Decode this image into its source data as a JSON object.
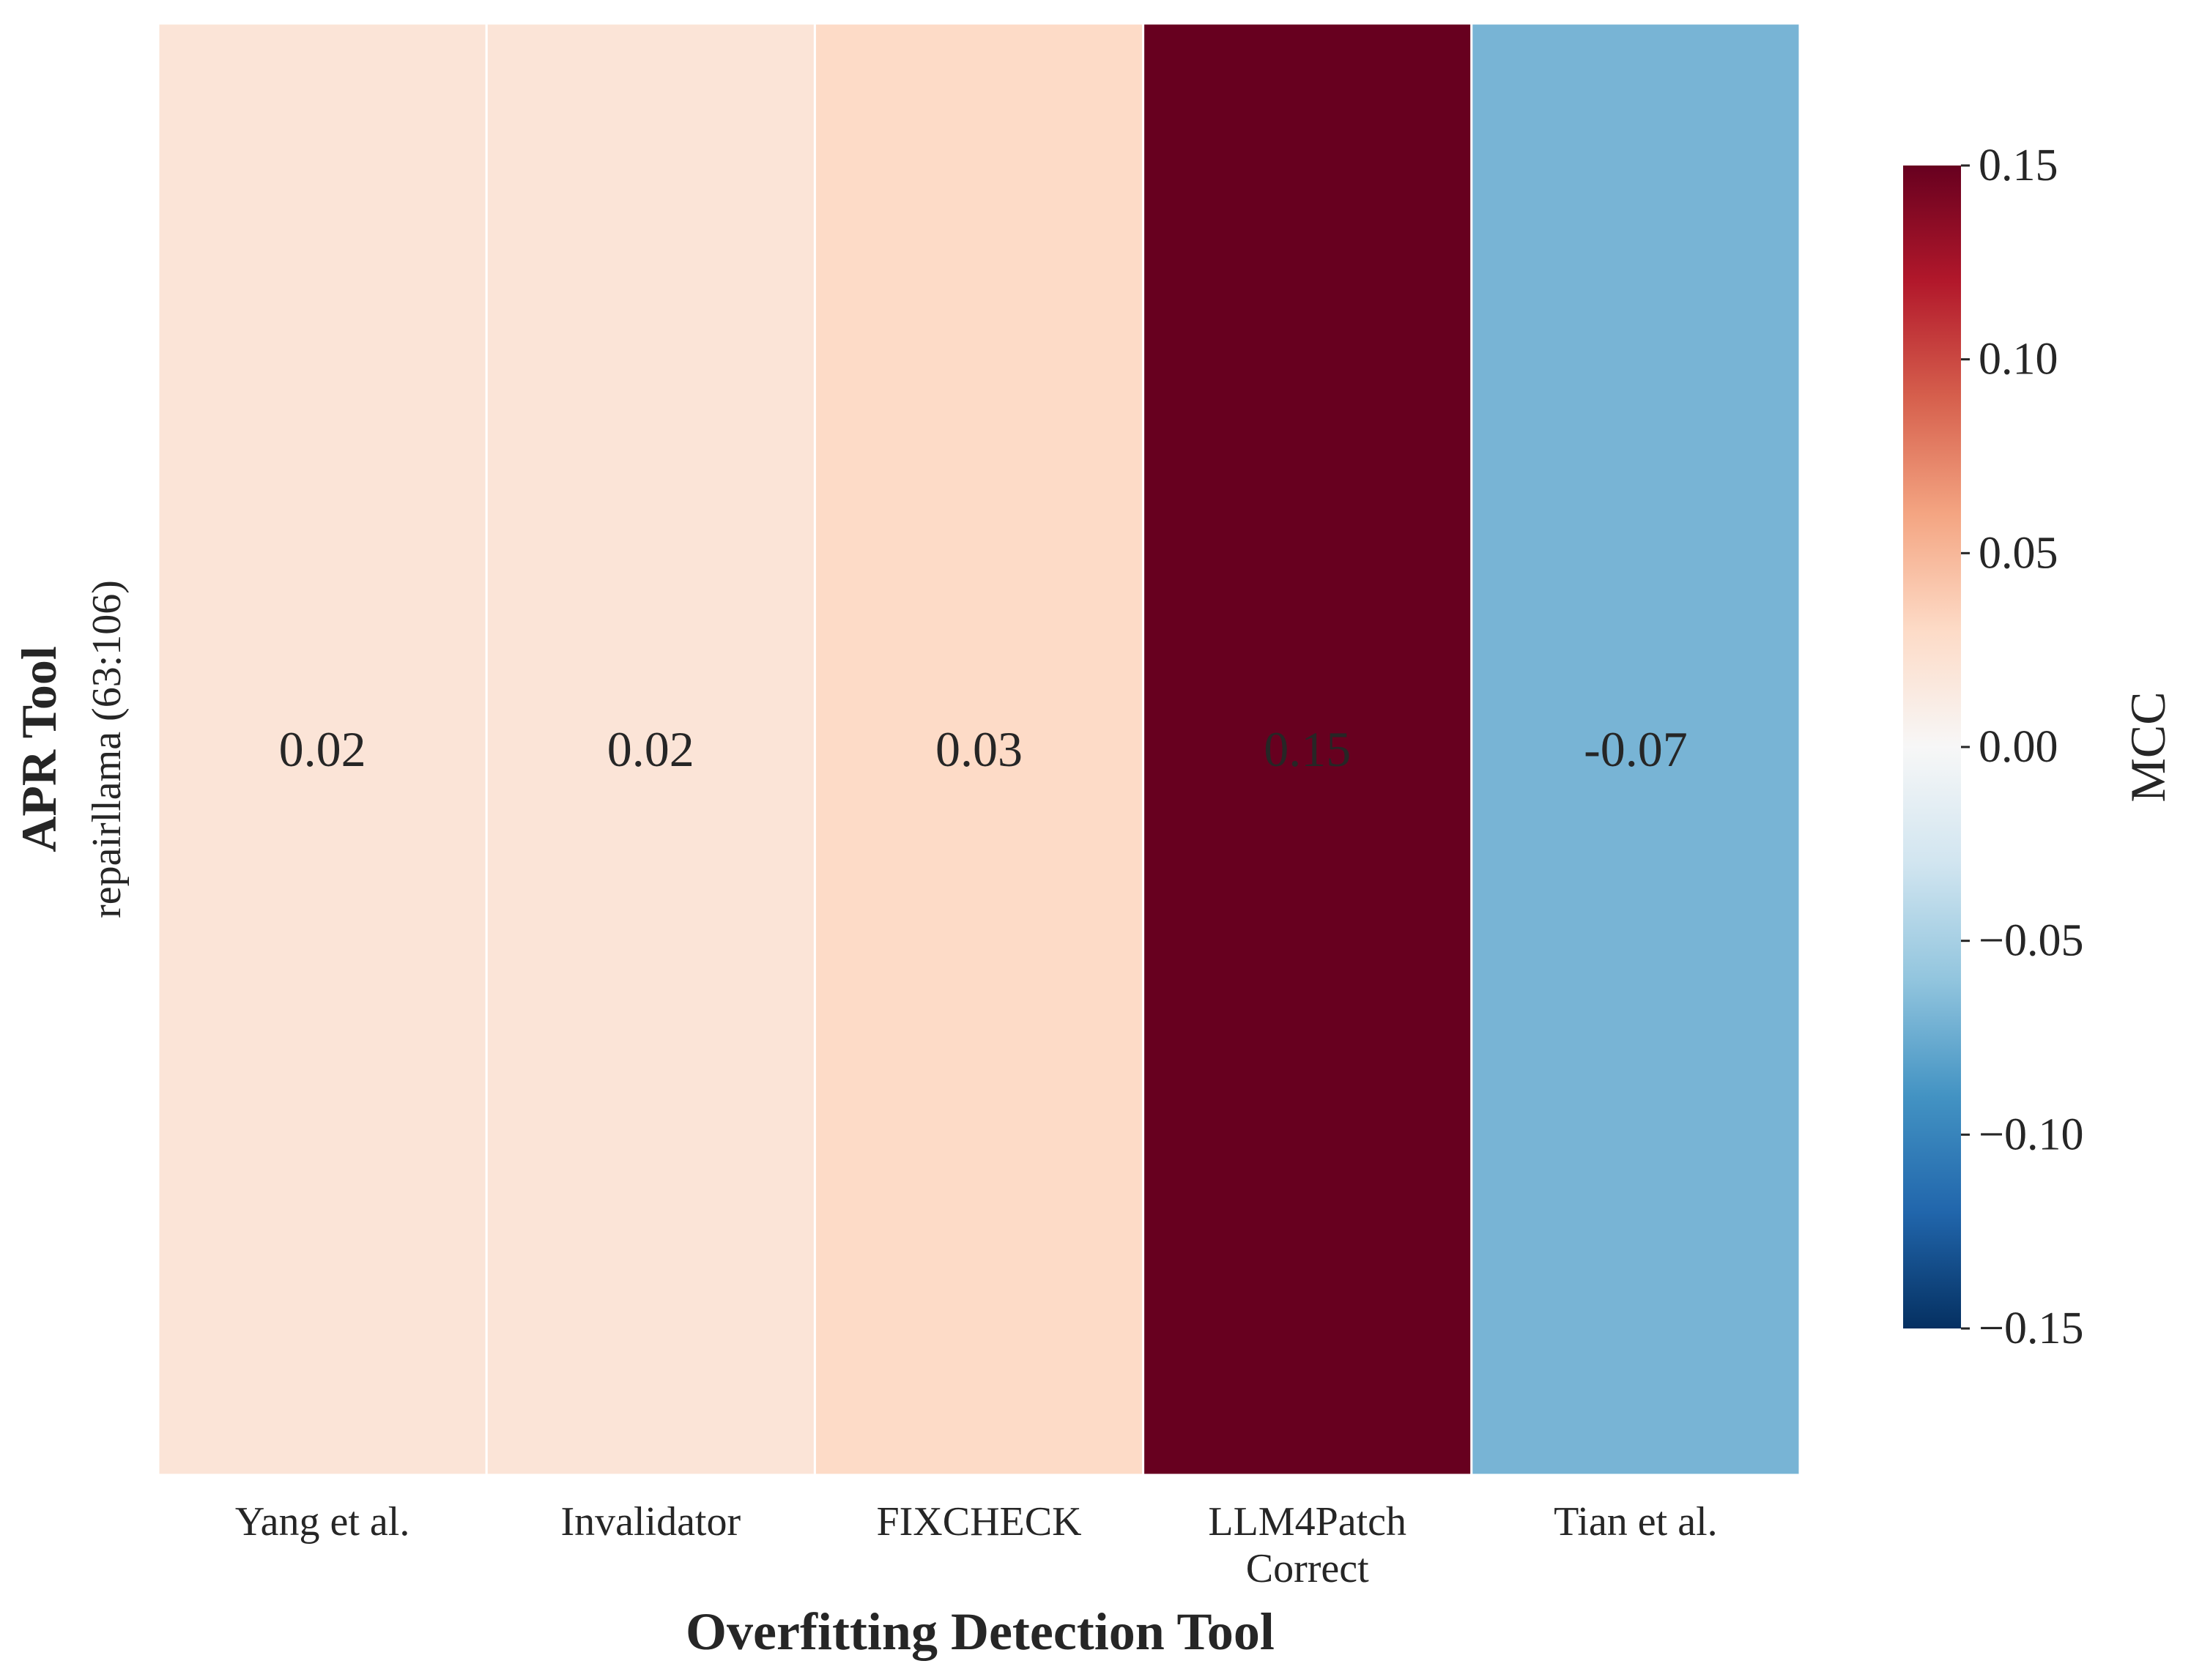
{
  "chart_data": {
    "type": "heatmap",
    "title": "",
    "xlabel": "Overfitting Detection Tool",
    "ylabel": "APR Tool",
    "x_categories": [
      [
        "Yang et al."
      ],
      [
        "Invalidator"
      ],
      [
        "FIXCHECK"
      ],
      [
        "LLM4Patch",
        "Correct"
      ],
      [
        "Tian et al."
      ]
    ],
    "y_categories": [
      "repairllama (63:106)"
    ],
    "values": [
      [
        0.02,
        0.02,
        0.03,
        0.15,
        -0.07
      ]
    ],
    "value_labels": [
      [
        "0.02",
        "0.02",
        "0.03",
        "0.15",
        "-0.07"
      ]
    ],
    "colorbar": {
      "label": "MCC",
      "range": [
        -0.15,
        0.15
      ],
      "ticks": [
        -0.15,
        -0.1,
        -0.05,
        0.0,
        0.05,
        0.1,
        0.15
      ],
      "tick_labels": [
        "−0.15",
        "−0.10",
        "−0.05",
        "0.00",
        "0.05",
        "0.10",
        "0.15"
      ],
      "colormap": "RdBu_r",
      "colors": [
        "#053061",
        "#2166ac",
        "#4393c3",
        "#92c5de",
        "#d1e5f0",
        "#f7f7f7",
        "#fddbc7",
        "#f4a582",
        "#d6604d",
        "#b2182b",
        "#67001f"
      ]
    },
    "grid": false,
    "cell_separator_color": "#ffffff"
  }
}
